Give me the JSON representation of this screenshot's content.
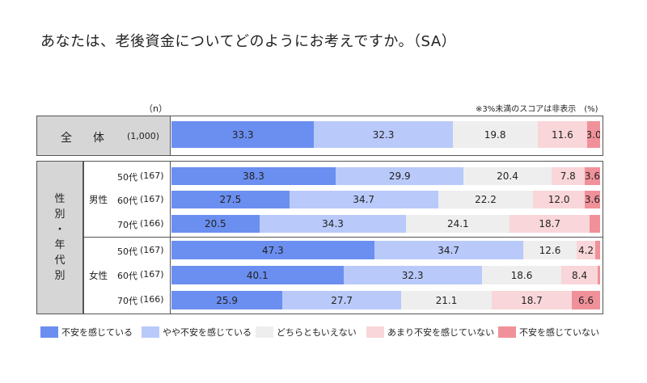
{
  "title": "あなたは、老後資金についてどのようにお考えですか。（SA）",
  "n_header": "（n）",
  "note": "※3%未満のスコアは非表示　(%)",
  "total_label": "全　体",
  "side_label": [
    "性",
    "別",
    "・",
    "年",
    "代",
    "別"
  ],
  "male_label": "男性",
  "female_label": "女性",
  "colors": [
    "#6b8ff0",
    "#b9c9fa",
    "#eeeeee",
    "#f9d6d9",
    "#f09199"
  ],
  "chart_data": {
    "type": "bar",
    "orientation": "horizontal-stacked-100",
    "categories": [
      "全体 (1,000)",
      "男性 50代 (167)",
      "男性 60代 (167)",
      "男性 70代 (166)",
      "女性 50代 (167)",
      "女性 60代 (167)",
      "女性 70代 (166)"
    ],
    "row_labels": [
      {
        "age": "",
        "n": "(1,000)"
      },
      {
        "age": "50代",
        "n": "(167)"
      },
      {
        "age": "60代",
        "n": "(167)"
      },
      {
        "age": "70代",
        "n": "(166)"
      },
      {
        "age": "50代",
        "n": "(167)"
      },
      {
        "age": "60代",
        "n": "(167)"
      },
      {
        "age": "70代",
        "n": "(166)"
      }
    ],
    "series": [
      {
        "name": "不安を感じている",
        "values": [
          33.3,
          38.3,
          27.5,
          20.5,
          47.3,
          40.1,
          25.9
        ]
      },
      {
        "name": "やや不安を感じている",
        "values": [
          32.3,
          29.9,
          34.7,
          34.3,
          34.7,
          32.3,
          27.7
        ]
      },
      {
        "name": "どちらともいえない",
        "values": [
          19.8,
          20.4,
          22.2,
          24.1,
          12.6,
          18.6,
          21.1
        ]
      },
      {
        "name": "あまり不安を感じていない",
        "values": [
          11.6,
          7.8,
          12.0,
          18.7,
          4.2,
          8.4,
          18.7
        ]
      },
      {
        "name": "不安を感じていない",
        "values": [
          3.0,
          3.6,
          3.6,
          2.4,
          1.2,
          0.6,
          6.6
        ]
      }
    ],
    "label_threshold": 3.0,
    "xlim": [
      0,
      100
    ]
  }
}
